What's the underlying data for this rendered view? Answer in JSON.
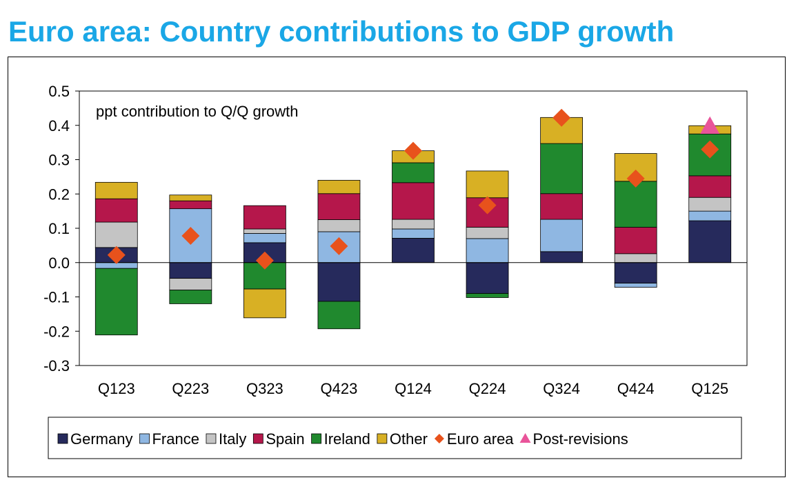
{
  "title": "Euro area: Country contributions to GDP growth",
  "chart_data": {
    "type": "bar",
    "stacked": true,
    "title": "Euro area: Country contributions to GDP growth",
    "annotation": "ppt contribution to Q/Q growth",
    "xlabel": "",
    "ylabel": "",
    "ylim": [
      -0.3,
      0.5
    ],
    "yticks": [
      0.5,
      0.4,
      0.3,
      0.2,
      0.1,
      0.0,
      -0.1,
      -0.2,
      -0.3
    ],
    "ytick_labels": [
      "0.5",
      "0.4",
      "0.3",
      "0.2",
      "0.1",
      "0.0",
      "-0.1",
      "-0.2",
      "-0.3"
    ],
    "grid": false,
    "legend_position": "bottom",
    "categories": [
      "Q123",
      "Q223",
      "Q323",
      "Q423",
      "Q124",
      "Q224",
      "Q324",
      "Q424",
      "Q125"
    ],
    "series": [
      {
        "name": "Germany",
        "color": "#262a5c",
        "values": [
          0.044,
          -0.046,
          0.058,
          -0.113,
          0.071,
          -0.09,
          0.032,
          -0.06,
          0.122
        ]
      },
      {
        "name": "France",
        "color": "#8fb7e2",
        "values": [
          -0.017,
          0.157,
          0.027,
          0.09,
          0.027,
          0.07,
          0.094,
          -0.012,
          0.028
        ]
      },
      {
        "name": "Italy",
        "color": "#c4c4c4",
        "values": [
          0.074,
          -0.034,
          0.013,
          0.035,
          0.028,
          0.033,
          0.0,
          0.026,
          0.04
        ]
      },
      {
        "name": "Spain",
        "color": "#b5174b",
        "values": [
          0.068,
          0.023,
          0.068,
          0.076,
          0.107,
          0.086,
          0.075,
          0.077,
          0.063
        ]
      },
      {
        "name": "Ireland",
        "color": "#20892e",
        "values": [
          -0.194,
          -0.04,
          -0.077,
          -0.08,
          0.058,
          -0.012,
          0.146,
          0.134,
          0.122
        ]
      },
      {
        "name": "Other",
        "color": "#d8b024",
        "values": [
          0.048,
          0.017,
          -0.084,
          0.039,
          0.035,
          0.078,
          0.076,
          0.081,
          0.024
        ]
      }
    ],
    "markers": [
      {
        "name": "Euro area",
        "shape": "diamond",
        "color": "#e8521c",
        "values": [
          0.022,
          0.078,
          0.006,
          0.048,
          0.326,
          0.167,
          0.422,
          0.245,
          0.33
        ]
      },
      {
        "name": "Post-revisions",
        "shape": "triangle",
        "color": "#e9549a",
        "values": [
          null,
          null,
          null,
          null,
          null,
          null,
          null,
          null,
          0.398
        ]
      }
    ]
  }
}
